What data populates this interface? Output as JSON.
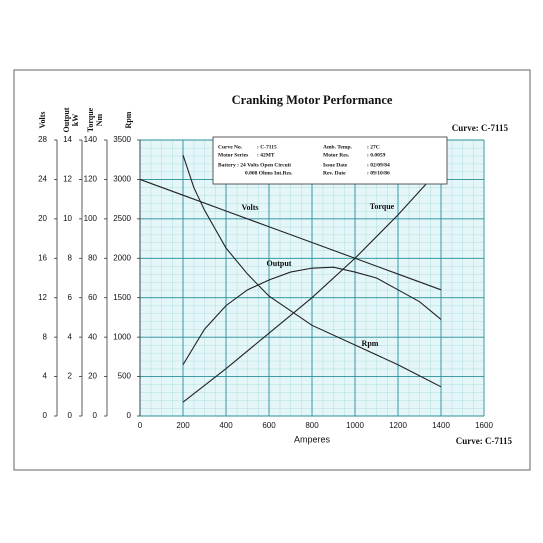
{
  "chart_data": {
    "type": "line",
    "title": "Cranking Motor Performance",
    "curve_label_top": "Curve: C-7115",
    "curve_label_bottom": "Curve: C-7115",
    "xlabel": "Amperes",
    "xlim": [
      0,
      1600
    ],
    "xticks": [
      0,
      200,
      400,
      600,
      800,
      1000,
      1200,
      1400,
      1600
    ],
    "grid": true,
    "y_axes": [
      {
        "label": [
          "Volts"
        ],
        "ylim": [
          0,
          28
        ],
        "yticks": [
          0,
          4,
          8,
          12,
          16,
          20,
          24,
          28
        ]
      },
      {
        "label": [
          "Output",
          "kW"
        ],
        "ylim": [
          0,
          14
        ],
        "yticks": [
          0,
          2,
          4,
          6,
          8,
          10,
          12,
          14
        ]
      },
      {
        "label": [
          "Torque",
          "Nm"
        ],
        "ylim": [
          0,
          140
        ],
        "yticks": [
          0,
          20,
          40,
          60,
          80,
          100,
          120,
          140
        ]
      },
      {
        "label": [
          "Rpm"
        ],
        "ylim": [
          0,
          3500
        ],
        "yticks": [
          0,
          500,
          1000,
          1500,
          2000,
          2500,
          3000,
          3500
        ]
      }
    ],
    "series": [
      {
        "name": "Volts",
        "axis": 0,
        "color": "#222",
        "x": [
          0,
          200,
          400,
          600,
          800,
          1000,
          1200,
          1400
        ],
        "values": [
          24,
          22.4,
          20.8,
          19.2,
          17.6,
          16,
          14.4,
          12.8
        ]
      },
      {
        "name": "Output",
        "axis": 1,
        "color": "#222",
        "x": [
          200,
          300,
          400,
          500,
          600,
          700,
          800,
          900,
          1000,
          1100,
          1200,
          1300,
          1400
        ],
        "values": [
          2.6,
          4.4,
          5.6,
          6.4,
          6.9,
          7.3,
          7.5,
          7.55,
          7.3,
          7.0,
          6.4,
          5.8,
          4.9
        ]
      },
      {
        "name": "Torque",
        "axis": 2,
        "color": "#222",
        "x": [
          200,
          400,
          600,
          800,
          1000,
          1200,
          1400
        ],
        "values": [
          7,
          24,
          42,
          60,
          80,
          102,
          126
        ]
      },
      {
        "name": "Rpm",
        "axis": 3,
        "color": "#222",
        "x": [
          200,
          250,
          300,
          400,
          500,
          600,
          800,
          1000,
          1200,
          1400
        ],
        "values": [
          3310,
          2900,
          2610,
          2130,
          1800,
          1520,
          1150,
          900,
          650,
          370
        ]
      }
    ],
    "info_box": [
      [
        "Curve No.",
        ": C-7115",
        "Amb. Temp.",
        ": 27C"
      ],
      [
        "Motor Series",
        ": 42MT",
        "Motor Res.",
        ": 0.0059"
      ],
      [
        "Battery :  24 Volts Open Circuit",
        "Issue Date",
        ": 02/09/84"
      ],
      [
        "0.008 Ohms Int.Res.",
        "Rev. Date",
        ": 09/10/86"
      ]
    ]
  }
}
